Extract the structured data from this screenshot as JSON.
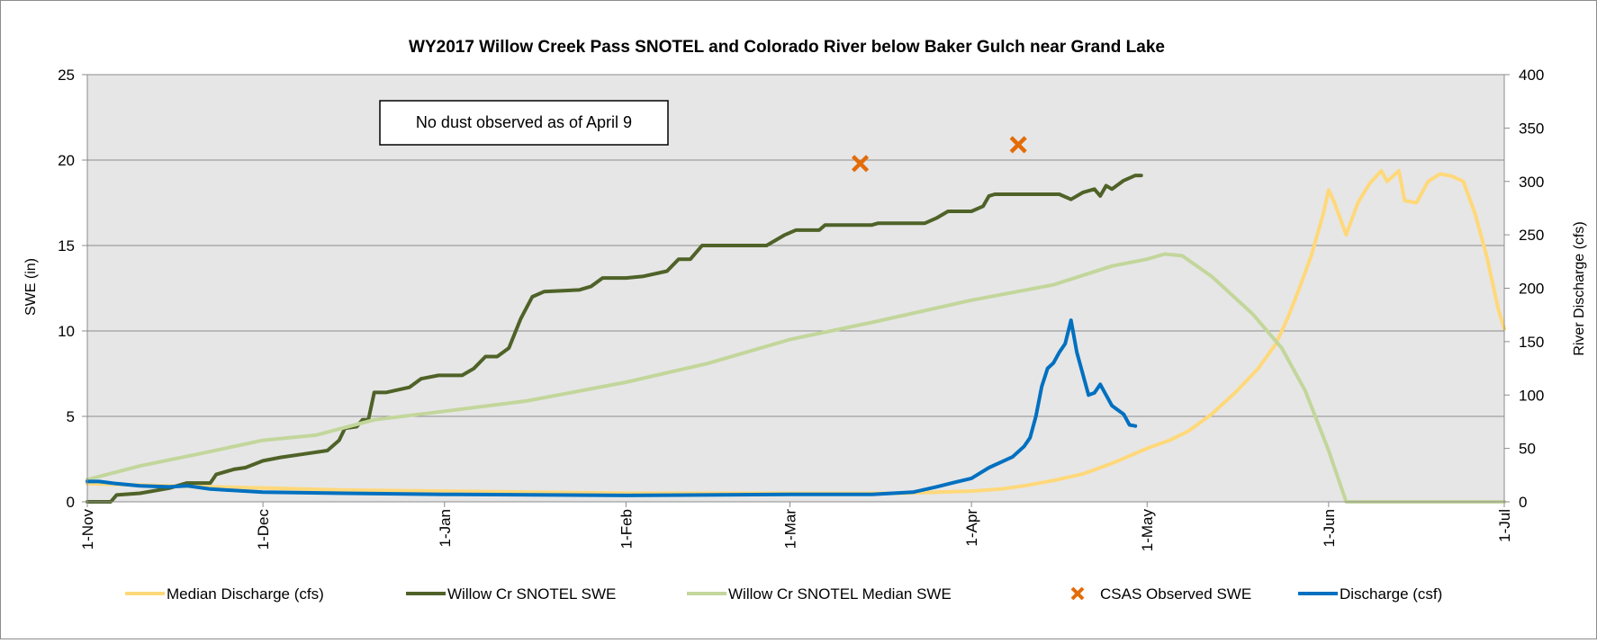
{
  "chart_data": {
    "type": "line",
    "title": "WY2017 Willow Creek Pass SNOTEL and Colorado River below Baker Gulch near Grand Lake",
    "ylabel": "SWE (in)",
    "y2label": "River Discharge (cfs)",
    "ylim": [
      0,
      25
    ],
    "y2lim": [
      0,
      400
    ],
    "yticks": [
      "0",
      "5",
      "10",
      "15",
      "20",
      "25"
    ],
    "y2ticks": [
      "0",
      "50",
      "100",
      "150",
      "200",
      "250",
      "300",
      "350",
      "400"
    ],
    "xlim": [
      "2016-11-01",
      "2017-07-01"
    ],
    "xticks": [
      {
        "date": "2016-11-01",
        "label": "1-Nov"
      },
      {
        "date": "2016-12-01",
        "label": "1-Dec"
      },
      {
        "date": "2017-01-01",
        "label": "1-Jan"
      },
      {
        "date": "2017-02-01",
        "label": "1-Feb"
      },
      {
        "date": "2017-03-01",
        "label": "1-Mar"
      },
      {
        "date": "2017-04-01",
        "label": "1-Apr"
      },
      {
        "date": "2017-05-01",
        "label": "1-May"
      },
      {
        "date": "2017-06-01",
        "label": "1-Jun"
      },
      {
        "date": "2017-07-01",
        "label": "1-Jul"
      }
    ],
    "grid": true,
    "legend_position": "bottom",
    "annotation": "No dust observed as of April 9",
    "series": [
      {
        "name": "Median Discharge (cfs)",
        "color": "#ffd87a",
        "axis": "right",
        "points": [
          [
            "2016-11-01",
            17
          ],
          [
            "2016-11-15",
            15
          ],
          [
            "2016-12-01",
            13
          ],
          [
            "2016-12-15",
            11
          ],
          [
            "2017-01-01",
            10
          ],
          [
            "2017-02-01",
            8
          ],
          [
            "2017-03-01",
            8
          ],
          [
            "2017-03-20",
            8
          ],
          [
            "2017-04-01",
            10
          ],
          [
            "2017-04-06",
            12
          ],
          [
            "2017-04-10",
            15
          ],
          [
            "2017-04-15",
            20
          ],
          [
            "2017-04-20",
            26
          ],
          [
            "2017-04-25",
            36
          ],
          [
            "2017-05-01",
            50
          ],
          [
            "2017-05-05",
            58
          ],
          [
            "2017-05-08",
            66
          ],
          [
            "2017-05-12",
            82
          ],
          [
            "2017-05-16",
            102
          ],
          [
            "2017-05-20",
            125
          ],
          [
            "2017-05-23",
            148
          ],
          [
            "2017-05-25",
            172
          ],
          [
            "2017-05-27",
            200
          ],
          [
            "2017-05-29",
            230
          ],
          [
            "2017-05-31",
            268
          ],
          [
            "2017-06-01",
            292
          ],
          [
            "2017-06-02",
            280
          ],
          [
            "2017-06-04",
            250
          ],
          [
            "2017-06-06",
            280
          ],
          [
            "2017-06-08",
            298
          ],
          [
            "2017-06-10",
            310
          ],
          [
            "2017-06-11",
            300
          ],
          [
            "2017-06-13",
            310
          ],
          [
            "2017-06-14",
            282
          ],
          [
            "2017-06-16",
            280
          ],
          [
            "2017-06-18",
            300
          ],
          [
            "2017-06-20",
            307
          ],
          [
            "2017-06-22",
            305
          ],
          [
            "2017-06-24",
            300
          ],
          [
            "2017-06-26",
            270
          ],
          [
            "2017-06-28",
            230
          ],
          [
            "2017-06-30",
            180
          ],
          [
            "2017-07-01",
            162
          ]
        ]
      },
      {
        "name": "Willow Cr SNOTEL SWE",
        "color": "#4f6228",
        "axis": "left",
        "points": [
          [
            "2016-11-01",
            0.0
          ],
          [
            "2016-11-05",
            0.0
          ],
          [
            "2016-11-06",
            0.4
          ],
          [
            "2016-11-10",
            0.5
          ],
          [
            "2016-11-15",
            0.8
          ],
          [
            "2016-11-18",
            1.1
          ],
          [
            "2016-11-22",
            1.1
          ],
          [
            "2016-11-23",
            1.6
          ],
          [
            "2016-11-26",
            1.9
          ],
          [
            "2016-11-28",
            2.0
          ],
          [
            "2016-12-01",
            2.4
          ],
          [
            "2016-12-04",
            2.6
          ],
          [
            "2016-12-08",
            2.8
          ],
          [
            "2016-12-12",
            3.0
          ],
          [
            "2016-12-14",
            3.6
          ],
          [
            "2016-12-15",
            4.3
          ],
          [
            "2016-12-17",
            4.4
          ],
          [
            "2016-12-18",
            4.8
          ],
          [
            "2016-12-19",
            4.8
          ],
          [
            "2016-12-20",
            6.4
          ],
          [
            "2016-12-22",
            6.4
          ],
          [
            "2016-12-26",
            6.7
          ],
          [
            "2016-12-28",
            7.2
          ],
          [
            "2016-12-31",
            7.4
          ],
          [
            "2017-01-04",
            7.4
          ],
          [
            "2017-01-06",
            7.8
          ],
          [
            "2017-01-08",
            8.5
          ],
          [
            "2017-01-10",
            8.5
          ],
          [
            "2017-01-12",
            9.0
          ],
          [
            "2017-01-14",
            10.7
          ],
          [
            "2017-01-16",
            12.0
          ],
          [
            "2017-01-18",
            12.3
          ],
          [
            "2017-01-24",
            12.4
          ],
          [
            "2017-01-26",
            12.6
          ],
          [
            "2017-01-28",
            13.1
          ],
          [
            "2017-02-01",
            13.1
          ],
          [
            "2017-02-04",
            13.2
          ],
          [
            "2017-02-08",
            13.5
          ],
          [
            "2017-02-10",
            14.2
          ],
          [
            "2017-02-12",
            14.2
          ],
          [
            "2017-02-14",
            15.0
          ],
          [
            "2017-02-25",
            15.0
          ],
          [
            "2017-02-28",
            15.6
          ],
          [
            "2017-03-02",
            15.9
          ],
          [
            "2017-03-06",
            15.9
          ],
          [
            "2017-03-07",
            16.2
          ],
          [
            "2017-03-15",
            16.2
          ],
          [
            "2017-03-16",
            16.3
          ],
          [
            "2017-03-24",
            16.3
          ],
          [
            "2017-03-26",
            16.6
          ],
          [
            "2017-03-28",
            17.0
          ],
          [
            "2017-04-01",
            17.0
          ],
          [
            "2017-04-03",
            17.3
          ],
          [
            "2017-04-04",
            17.9
          ],
          [
            "2017-04-05",
            18.0
          ],
          [
            "2017-04-16",
            18.0
          ],
          [
            "2017-04-18",
            17.7
          ],
          [
            "2017-04-20",
            18.1
          ],
          [
            "2017-04-22",
            18.3
          ],
          [
            "2017-04-23",
            17.9
          ],
          [
            "2017-04-24",
            18.5
          ],
          [
            "2017-04-25",
            18.3
          ],
          [
            "2017-04-27",
            18.8
          ],
          [
            "2017-04-29",
            19.1
          ],
          [
            "2017-04-30",
            19.1
          ]
        ]
      },
      {
        "name": "Willow Cr SNOTEL Median SWE",
        "color": "#c3d69b",
        "axis": "left",
        "points": [
          [
            "2016-11-01",
            1.3
          ],
          [
            "2016-11-10",
            2.1
          ],
          [
            "2016-11-20",
            2.8
          ],
          [
            "2016-12-01",
            3.6
          ],
          [
            "2016-12-10",
            3.9
          ],
          [
            "2016-12-20",
            4.8
          ],
          [
            "2017-01-01",
            5.3
          ],
          [
            "2017-01-15",
            5.9
          ],
          [
            "2017-02-01",
            7.0
          ],
          [
            "2017-02-15",
            8.1
          ],
          [
            "2017-03-01",
            9.5
          ],
          [
            "2017-03-15",
            10.5
          ],
          [
            "2017-04-01",
            11.8
          ],
          [
            "2017-04-15",
            12.7
          ],
          [
            "2017-04-25",
            13.8
          ],
          [
            "2017-05-01",
            14.2
          ],
          [
            "2017-05-04",
            14.5
          ],
          [
            "2017-05-07",
            14.4
          ],
          [
            "2017-05-12",
            13.2
          ],
          [
            "2017-05-19",
            11.0
          ],
          [
            "2017-05-24",
            9.0
          ],
          [
            "2017-05-28",
            6.5
          ],
          [
            "2017-06-01",
            3.0
          ],
          [
            "2017-06-04",
            0.0
          ],
          [
            "2017-07-01",
            0.0
          ]
        ]
      },
      {
        "name": "Discharge (csf)",
        "color": "#0070c0",
        "axis": "right",
        "points": [
          [
            "2016-11-01",
            19
          ],
          [
            "2016-11-03",
            19
          ],
          [
            "2016-11-06",
            17
          ],
          [
            "2016-11-10",
            15
          ],
          [
            "2016-11-15",
            14
          ],
          [
            "2016-11-18",
            15
          ],
          [
            "2016-11-22",
            12
          ],
          [
            "2016-12-01",
            9
          ],
          [
            "2016-12-15",
            8
          ],
          [
            "2017-01-01",
            7
          ],
          [
            "2017-02-01",
            6
          ],
          [
            "2017-03-01",
            7
          ],
          [
            "2017-03-15",
            7
          ],
          [
            "2017-03-22",
            9
          ],
          [
            "2017-03-26",
            14
          ],
          [
            "2017-03-29",
            18
          ],
          [
            "2017-04-01",
            22
          ],
          [
            "2017-04-04",
            32
          ],
          [
            "2017-04-08",
            42
          ],
          [
            "2017-04-10",
            52
          ],
          [
            "2017-04-11",
            60
          ],
          [
            "2017-04-12",
            80
          ],
          [
            "2017-04-13",
            108
          ],
          [
            "2017-04-14",
            125
          ],
          [
            "2017-04-15",
            130
          ],
          [
            "2017-04-16",
            140
          ],
          [
            "2017-04-17",
            148
          ],
          [
            "2017-04-18",
            170
          ],
          [
            "2017-04-19",
            140
          ],
          [
            "2017-04-20",
            120
          ],
          [
            "2017-04-21",
            100
          ],
          [
            "2017-04-22",
            102
          ],
          [
            "2017-04-23",
            110
          ],
          [
            "2017-04-24",
            100
          ],
          [
            "2017-04-25",
            90
          ],
          [
            "2017-04-27",
            82
          ],
          [
            "2017-04-28",
            72
          ],
          [
            "2017-04-29",
            71
          ]
        ]
      },
      {
        "name": "CSAS Observed SWE",
        "color": "#e36c09",
        "axis": "left",
        "marker": "x",
        "points": [
          [
            "2017-03-13",
            19.8
          ],
          [
            "2017-04-09",
            20.9
          ]
        ]
      }
    ],
    "legend": [
      {
        "label": "Median Discharge (cfs)",
        "color": "#ffd87a",
        "kind": "line"
      },
      {
        "label": "Willow Cr SNOTEL SWE",
        "color": "#4f6228",
        "kind": "line"
      },
      {
        "label": "Willow Cr SNOTEL Median SWE",
        "color": "#c3d69b",
        "kind": "line"
      },
      {
        "label": "CSAS Observed SWE",
        "color": "#e36c09",
        "kind": "x"
      },
      {
        "label": "Discharge (csf)",
        "color": "#0070c0",
        "kind": "line"
      }
    ]
  }
}
